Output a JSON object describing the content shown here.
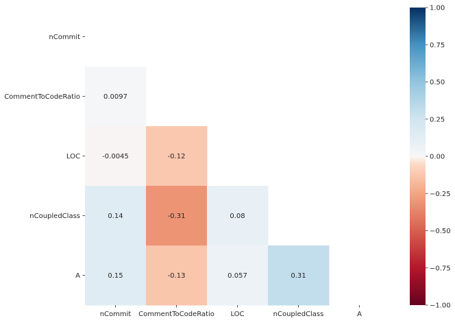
{
  "chart_data": {
    "type": "heatmap",
    "title": "",
    "xlabel": "",
    "ylabel": "",
    "rows": [
      "nCommit",
      "CommentToCodeRatio",
      "LOC",
      "nCoupledClass",
      "A"
    ],
    "columns": [
      "nCommit",
      "CommentToCodeRatio",
      "LOC",
      "nCoupledClass",
      "A"
    ],
    "mask": "upper-triangle-including-diagonal",
    "matrix": [
      [
        null,
        null,
        null,
        null,
        null
      ],
      [
        0.0097,
        null,
        null,
        null,
        null
      ],
      [
        -0.0045,
        -0.12,
        null,
        null,
        null
      ],
      [
        0.14,
        -0.31,
        0.08,
        null,
        null
      ],
      [
        0.15,
        -0.13,
        0.057,
        0.31,
        null
      ]
    ],
    "cell_labels": [
      [
        "",
        "",
        "",
        "",
        ""
      ],
      [
        "0.0097",
        "",
        "",
        "",
        ""
      ],
      [
        "-0.0045",
        "-0.12",
        "",
        "",
        ""
      ],
      [
        "0.14",
        "-0.31",
        "0.08",
        "",
        ""
      ],
      [
        "0.15",
        "-0.13",
        "0.057",
        "0.31",
        ""
      ]
    ],
    "colorbar": {
      "colormap": "RdBu",
      "vmin": -1.0,
      "vmax": 1.0,
      "ticks": [
        1.0,
        0.75,
        0.5,
        0.25,
        0.0,
        -0.25,
        -0.5,
        -0.75,
        -1.0
      ],
      "tick_labels": [
        "1.00",
        "0.75",
        "0.50",
        "0.25",
        "0.00",
        "−0.25",
        "−0.50",
        "−0.75",
        "−1.00"
      ],
      "placement": "right"
    },
    "grid": false
  }
}
